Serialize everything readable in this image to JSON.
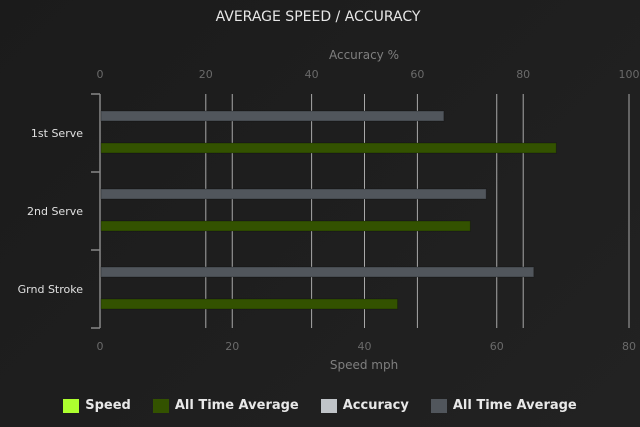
{
  "chart_data": {
    "type": "bar",
    "orientation": "horizontal",
    "title": "AVERAGE SPEED / ACCURACY",
    "categories": [
      "1st Serve",
      "2nd Serve",
      "Grnd Stroke"
    ],
    "x_top_axis": {
      "label": "Accuracy %",
      "range": [
        0,
        100
      ],
      "ticks": [
        0,
        20,
        40,
        60,
        80,
        100
      ]
    },
    "x_bottom_axis": {
      "label": "Speed mph",
      "range": [
        0,
        80
      ],
      "ticks": [
        0,
        20,
        40,
        60,
        80
      ]
    },
    "grid": true,
    "legend_position": "bottom",
    "series": [
      {
        "name": "Speed",
        "axis": "speed",
        "color": "#adff2f",
        "values": [
          null,
          null,
          null
        ]
      },
      {
        "name": "All Time Average",
        "axis": "speed",
        "color": "#335200",
        "values": [
          69,
          56,
          45
        ]
      },
      {
        "name": "Accuracy",
        "axis": "accuracy",
        "color": "#c0c4c8",
        "values": [
          null,
          null,
          null
        ]
      },
      {
        "name": "All Time Average",
        "axis": "accuracy",
        "color": "#51565c",
        "values": [
          65,
          73,
          82
        ]
      }
    ]
  }
}
